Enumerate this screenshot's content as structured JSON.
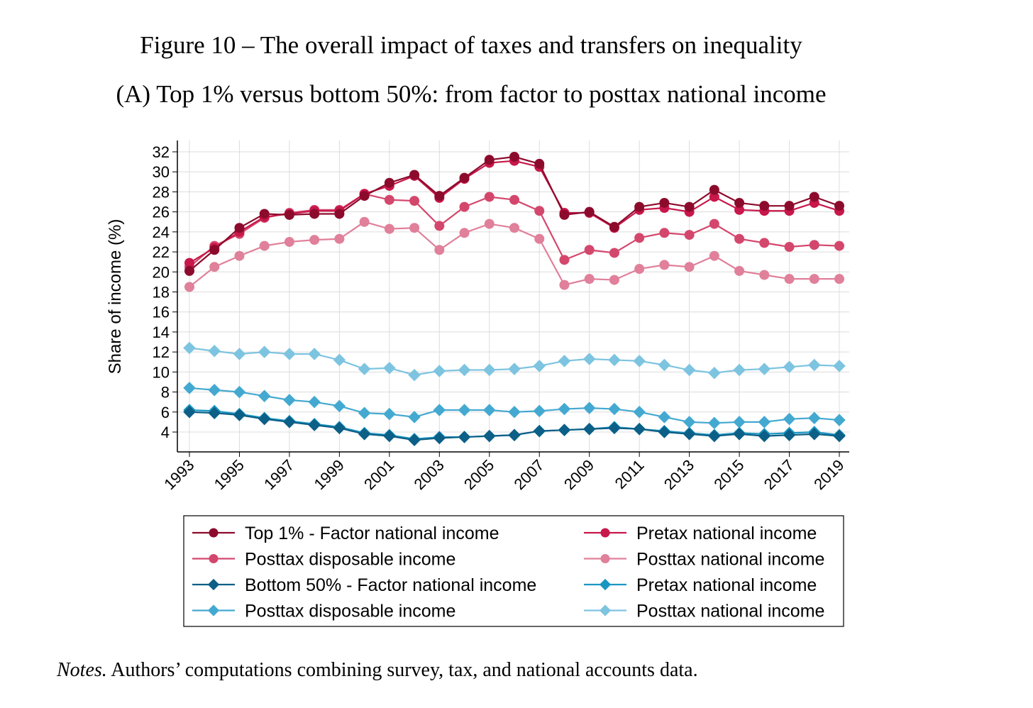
{
  "title": "Figure 10 – The overall impact of taxes and transfers on inequality",
  "subtitle": "(A) Top 1% versus bottom 50%: from factor to posttax national income",
  "notes_label": "Notes.",
  "notes_text": " Authors’ computations combining survey, tax, and national accounts data.",
  "chart_data": {
    "type": "line",
    "ylabel": "Share of income (%)",
    "xlabel": "",
    "ylim": [
      2.5,
      33
    ],
    "yticks": [
      4,
      6,
      8,
      10,
      12,
      14,
      16,
      18,
      20,
      22,
      24,
      26,
      28,
      30,
      32
    ],
    "xticks": [
      1993,
      1995,
      1997,
      1999,
      2001,
      2003,
      2005,
      2007,
      2009,
      2011,
      2013,
      2015,
      2017,
      2019
    ],
    "grid": true,
    "legend_placement": "bottom",
    "x": [
      1993,
      1994,
      1995,
      1996,
      1997,
      1998,
      1999,
      2000,
      2001,
      2002,
      2003,
      2004,
      2005,
      2006,
      2007,
      2008,
      2009,
      2010,
      2011,
      2012,
      2013,
      2014,
      2015,
      2016,
      2017,
      2018,
      2019
    ],
    "series": [
      {
        "name": "Top 1% - Factor national income",
        "color": "#8c0b2c",
        "marker": "circle",
        "values": [
          20.1,
          22.2,
          24.4,
          25.8,
          25.7,
          25.8,
          25.8,
          27.6,
          28.9,
          29.7,
          27.6,
          29.4,
          31.2,
          31.5,
          30.8,
          25.7,
          26.0,
          24.5,
          26.5,
          26.9,
          26.5,
          28.2,
          26.9,
          26.6,
          26.6,
          27.5,
          26.6
        ]
      },
      {
        "name": "Pretax national income",
        "color": "#c8174a",
        "marker": "circle",
        "values": [
          20.9,
          22.4,
          24.0,
          25.5,
          25.8,
          26.1,
          26.1,
          27.8,
          28.6,
          29.6,
          27.4,
          29.3,
          30.9,
          31.1,
          30.5,
          25.9,
          25.9,
          24.4,
          26.2,
          26.4,
          26.0,
          27.5,
          26.2,
          26.1,
          26.1,
          26.9,
          26.1
        ]
      },
      {
        "name": "Posttax disposable income",
        "color": "#d4476d",
        "marker": "circle",
        "values": [
          20.5,
          22.6,
          23.8,
          25.4,
          25.9,
          26.2,
          26.2,
          27.8,
          27.2,
          27.1,
          24.6,
          26.5,
          27.5,
          27.2,
          26.1,
          21.2,
          22.2,
          21.9,
          23.4,
          23.9,
          23.7,
          24.8,
          23.3,
          22.9,
          22.5,
          22.7,
          22.6
        ]
      },
      {
        "name": "Posttax national income",
        "color": "#e0809a",
        "marker": "circle",
        "values": [
          18.5,
          20.5,
          21.6,
          22.6,
          23.0,
          23.2,
          23.3,
          25.0,
          24.3,
          24.4,
          22.2,
          23.9,
          24.8,
          24.4,
          23.3,
          18.7,
          19.3,
          19.2,
          20.3,
          20.7,
          20.5,
          21.6,
          20.1,
          19.7,
          19.3,
          19.3,
          19.3
        ]
      },
      {
        "name": "Bottom 50% - Factor national income",
        "color": "#0c5f86",
        "marker": "diamond",
        "values": [
          6.0,
          5.9,
          5.7,
          5.3,
          5.0,
          4.7,
          4.4,
          3.8,
          3.6,
          3.2,
          3.4,
          3.5,
          3.6,
          3.7,
          4.1,
          4.2,
          4.3,
          4.4,
          4.3,
          4.0,
          3.8,
          3.6,
          3.8,
          3.6,
          3.7,
          3.8,
          3.6
        ]
      },
      {
        "name": "Pretax national income",
        "color": "#1a96c3",
        "marker": "diamond",
        "values": [
          6.2,
          6.1,
          5.8,
          5.4,
          5.1,
          4.8,
          4.5,
          3.9,
          3.7,
          3.3,
          3.5,
          3.5,
          3.6,
          3.7,
          4.1,
          4.2,
          4.3,
          4.5,
          4.3,
          4.1,
          3.9,
          3.7,
          3.9,
          3.8,
          3.9,
          4.0,
          3.7
        ]
      },
      {
        "name": "Posttax disposable income",
        "color": "#44a9d1",
        "marker": "diamond",
        "values": [
          8.4,
          8.2,
          8.0,
          7.6,
          7.2,
          7.0,
          6.6,
          5.9,
          5.8,
          5.5,
          6.2,
          6.2,
          6.2,
          6.0,
          6.1,
          6.3,
          6.4,
          6.3,
          6.0,
          5.5,
          5.0,
          4.9,
          5.0,
          5.0,
          5.3,
          5.4,
          5.2
        ]
      },
      {
        "name": "Posttax national income",
        "color": "#7dc4e0",
        "marker": "diamond",
        "values": [
          12.4,
          12.1,
          11.8,
          12.0,
          11.8,
          11.8,
          11.2,
          10.3,
          10.4,
          9.7,
          10.1,
          10.2,
          10.2,
          10.3,
          10.6,
          11.1,
          11.3,
          11.2,
          11.1,
          10.7,
          10.2,
          9.9,
          10.2,
          10.3,
          10.5,
          10.7,
          10.6
        ]
      }
    ]
  }
}
